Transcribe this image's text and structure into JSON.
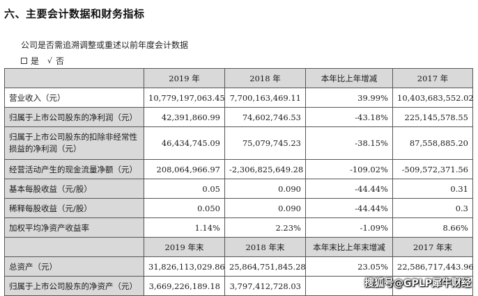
{
  "section_title": "六、主要会计数据和财务指标",
  "note": "公司是否需追溯调整或重述以前年度会计数据",
  "choice": {
    "yes": "是",
    "check_mark": "√",
    "no": "否"
  },
  "headers_a": [
    "",
    "2019 年",
    "2018 年",
    "本年比上年增减",
    "2017 年"
  ],
  "rows_a": [
    {
      "label": "营业收入（元）",
      "v2019": "10,779,197,063.45",
      "v2018": "7,700,163,469.11",
      "change": "39.99%",
      "v2017": "10,403,683,552.02"
    },
    {
      "label": "归属于上市公司股东的净利润（元）",
      "v2019": "42,391,860.99",
      "v2018": "74,602,746.53",
      "change": "-43.18%",
      "v2017": "225,145,578.55"
    },
    {
      "label": "归属于上市公司股东的扣除非经常性损益的净利润（元）",
      "v2019": "46,434,745.09",
      "v2018": "75,079,745.23",
      "change": "-38.15%",
      "v2017": "87,558,885.20"
    },
    {
      "label": "经营活动产生的现金流量净额（元）",
      "v2019": "208,064,966.97",
      "v2018": "-2,306,825,649.28",
      "change": "-109.02%",
      "v2017": "-509,572,371.56"
    },
    {
      "label": "基本每股收益（元/股）",
      "v2019": "0.05",
      "v2018": "0.090",
      "change": "-44.44%",
      "v2017": "0.31"
    },
    {
      "label": "稀释每股收益（元/股）",
      "v2019": "0.050",
      "v2018": "0.090",
      "change": "-44.44%",
      "v2017": "0.3"
    },
    {
      "label": "加权平均净资产收益率",
      "v2019": "1.14%",
      "v2018": "2.23%",
      "change": "-1.09%",
      "v2017": "8.66%"
    }
  ],
  "headers_b": [
    "",
    "2019 年末",
    "2018 年末",
    "本年末比上年末增减",
    "2017 年末"
  ],
  "rows_b": [
    {
      "label": "总资产（元）",
      "v2019": "31,826,113,029.86",
      "v2018": "25,864,751,845.28",
      "change": "23.05%",
      "v2017": "22,586,717,443.96"
    },
    {
      "label": "归属于上市公司股东的净资产（元）",
      "v2019": "3,669,226,189.18",
      "v2018": "3,797,412,728.03",
      "change": "",
      "v2017": ""
    }
  ],
  "watermark": "搜狐号@GPLP犀牛财经"
}
